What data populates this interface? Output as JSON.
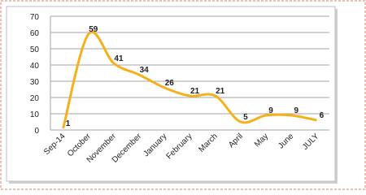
{
  "chart_data": {
    "type": "line",
    "categories": [
      "Sep-14",
      "October",
      "November",
      "December",
      "January",
      "February",
      "March",
      "April",
      "May",
      "June",
      "JULY"
    ],
    "values": [
      1,
      59,
      41,
      34,
      26,
      21,
      21,
      5,
      9,
      9,
      6
    ],
    "color": "#f5b01b",
    "smooth": true,
    "data_labels": true,
    "ylim": [
      0,
      70
    ],
    "yticks": [
      0,
      10,
      20,
      30,
      40,
      50,
      60,
      70
    ],
    "grid": true
  }
}
